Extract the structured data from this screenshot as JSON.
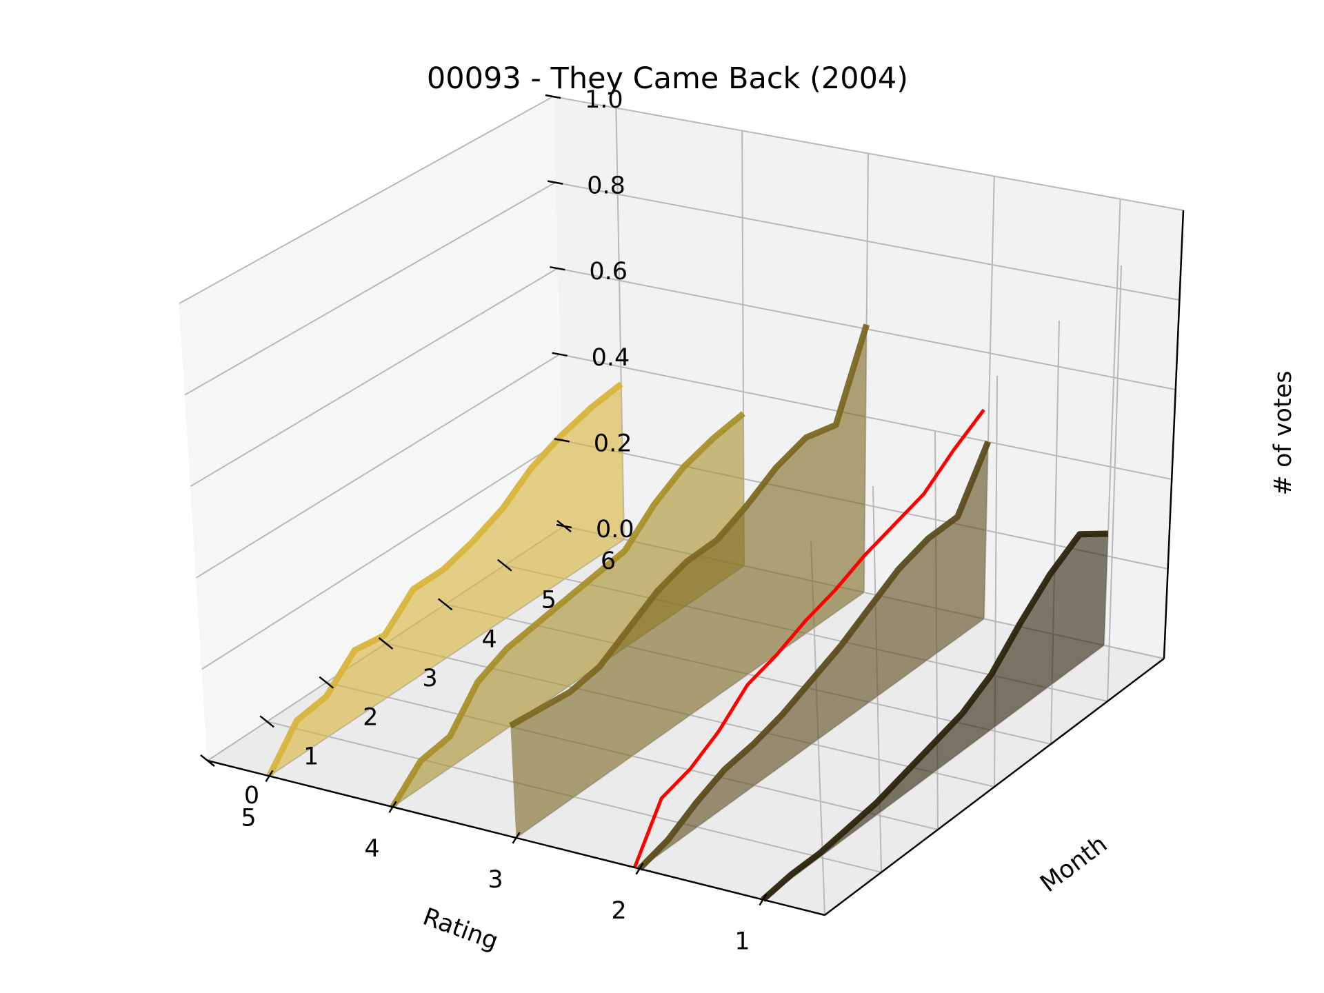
{
  "chart_data": {
    "type": "3d-line",
    "title": "00093 - They Came Back (2004)",
    "xlabel": "Rating",
    "ylabel": "Month",
    "zlabel": "# of votes",
    "ratings": [
      1,
      2,
      3,
      4,
      5
    ],
    "x_ticks": [
      "1",
      "2",
      "3",
      "4",
      "5"
    ],
    "y_ticks": [
      "0",
      "1",
      "2",
      "3",
      "4",
      "5",
      "6"
    ],
    "z_ticks": [
      "0.0",
      "0.2",
      "0.4",
      "0.6",
      "0.8",
      "1.0"
    ],
    "xlim": [
      0.5,
      5.5
    ],
    "ylim": [
      0,
      6
    ],
    "zlim": [
      0,
      1
    ],
    "grid": true,
    "series": [
      {
        "rating": 5,
        "color": "#d8b43c",
        "months": [
          0,
          0.5,
          1,
          1.5,
          2,
          2.5,
          3,
          3.5,
          4,
          4.5,
          5,
          5.5,
          6
        ],
        "values": [
          0.0,
          0.08,
          0.09,
          0.15,
          0.14,
          0.2,
          0.2,
          0.22,
          0.25,
          0.3,
          0.33,
          0.35,
          0.36
        ]
      },
      {
        "rating": 4,
        "color": "#a8902a",
        "months": [
          0,
          0.5,
          1,
          1.5,
          2,
          2.5,
          3,
          3.5,
          4,
          4.5,
          5,
          5.5,
          6
        ],
        "values": [
          0.0,
          0.06,
          0.07,
          0.15,
          0.18,
          0.19,
          0.2,
          0.21,
          0.22,
          0.28,
          0.32,
          0.34,
          0.35
        ]
      },
      {
        "rating": 3,
        "color": "#7c6822",
        "months": [
          0,
          0.5,
          1,
          1.5,
          2,
          2.5,
          3,
          3.5,
          4,
          4.5,
          5,
          5.5,
          6
        ],
        "values": [
          0.27,
          0.26,
          0.25,
          0.26,
          0.3,
          0.34,
          0.36,
          0.36,
          0.39,
          0.43,
          0.45,
          0.43,
          0.61
        ]
      },
      {
        "rating": 2,
        "color": "#5c4c1c",
        "months": [
          0,
          0.5,
          1,
          1.5,
          2,
          2.5,
          3,
          3.5,
          4,
          4.5,
          5,
          5.5,
          6
        ],
        "values": [
          0.0,
          0.02,
          0.06,
          0.09,
          0.1,
          0.12,
          0.15,
          0.18,
          0.22,
          0.26,
          0.28,
          0.28,
          0.4
        ]
      },
      {
        "rating": 1,
        "color": "#2c240c",
        "months": [
          0,
          0.5,
          1,
          1.5,
          2,
          2.5,
          3,
          3.5,
          4,
          4.5,
          5,
          5.5,
          6
        ],
        "values": [
          0.0,
          0.01,
          0.01,
          0.02,
          0.03,
          0.05,
          0.07,
          0.09,
          0.13,
          0.2,
          0.26,
          0.3,
          0.25
        ]
      }
    ],
    "highlight": {
      "rating": 2,
      "color": "#ff0000",
      "months": [
        0,
        0.5,
        1,
        1.5,
        2,
        2.5,
        3,
        3.5,
        4,
        4.5,
        5,
        5.5,
        6
      ],
      "values": [
        0.0,
        0.12,
        0.14,
        0.18,
        0.24,
        0.26,
        0.29,
        0.31,
        0.34,
        0.36,
        0.38,
        0.43,
        0.47
      ]
    }
  }
}
